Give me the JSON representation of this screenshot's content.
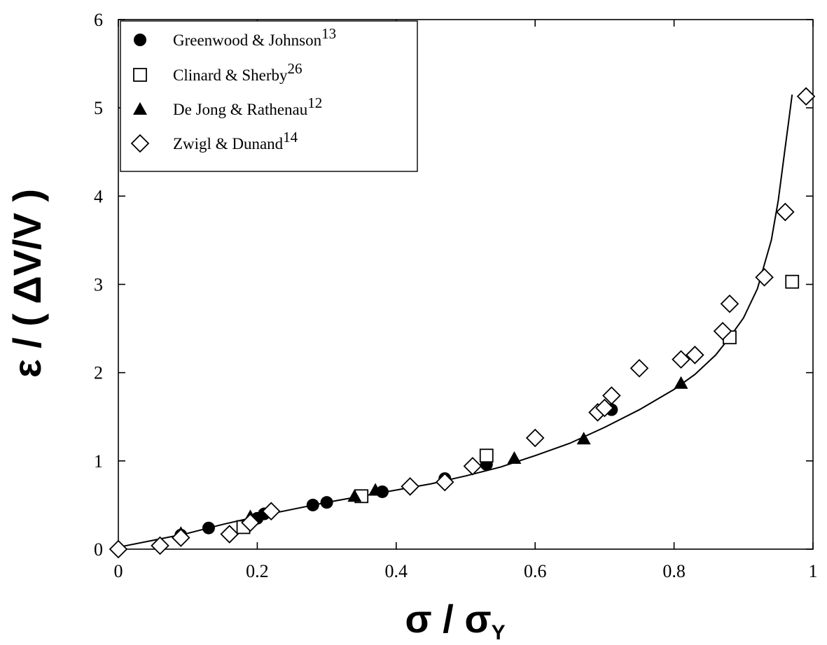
{
  "chart_data": {
    "type": "scatter",
    "xlabel": "σ / σ",
    "xlabel_sub": "Y",
    "ylabel": "ε / ( ΔV/V )",
    "xlim": [
      0,
      1
    ],
    "ylim": [
      0,
      6
    ],
    "x_ticks": [
      "0",
      "0.2",
      "0.4",
      "0.6",
      "0.8",
      "1"
    ],
    "y_ticks": [
      "0",
      "1",
      "2",
      "3",
      "4",
      "5",
      "6"
    ],
    "legend_position": "top-left",
    "grid": false,
    "series": [
      {
        "name": "Greenwood & Johnson",
        "ref": "13",
        "marker": "filled-circle",
        "points": [
          [
            0.09,
            0.16
          ],
          [
            0.13,
            0.24
          ],
          [
            0.2,
            0.35
          ],
          [
            0.21,
            0.4
          ],
          [
            0.28,
            0.5
          ],
          [
            0.3,
            0.53
          ],
          [
            0.38,
            0.65
          ],
          [
            0.47,
            0.8
          ],
          [
            0.53,
            0.96
          ],
          [
            0.71,
            1.58
          ]
        ]
      },
      {
        "name": "Clinard & Sherby",
        "ref": "26",
        "marker": "open-square",
        "points": [
          [
            0.18,
            0.25
          ],
          [
            0.35,
            0.6
          ],
          [
            0.53,
            1.06
          ],
          [
            0.88,
            2.4
          ],
          [
            0.97,
            3.03
          ]
        ]
      },
      {
        "name": "De Jong & Rathenau",
        "ref": "12",
        "marker": "filled-triangle",
        "points": [
          [
            0.09,
            0.18
          ],
          [
            0.19,
            0.37
          ],
          [
            0.34,
            0.6
          ],
          [
            0.37,
            0.67
          ],
          [
            0.57,
            1.03
          ],
          [
            0.67,
            1.25
          ],
          [
            0.81,
            1.88
          ]
        ]
      },
      {
        "name": "Zwigl & Dunand",
        "ref": "14",
        "marker": "open-diamond",
        "points": [
          [
            0,
            0
          ],
          [
            0.06,
            0.04
          ],
          [
            0.09,
            0.13
          ],
          [
            0.16,
            0.17
          ],
          [
            0.19,
            0.3
          ],
          [
            0.22,
            0.43
          ],
          [
            0.42,
            0.71
          ],
          [
            0.47,
            0.76
          ],
          [
            0.51,
            0.94
          ],
          [
            0.6,
            1.26
          ],
          [
            0.69,
            1.55
          ],
          [
            0.7,
            1.6
          ],
          [
            0.71,
            1.74
          ],
          [
            0.75,
            2.05
          ],
          [
            0.81,
            2.15
          ],
          [
            0.83,
            2.2
          ],
          [
            0.87,
            2.47
          ],
          [
            0.88,
            2.78
          ],
          [
            0.93,
            3.08
          ],
          [
            0.96,
            3.82
          ],
          [
            0.99,
            5.13
          ]
        ]
      }
    ],
    "fit_curve": {
      "x": [
        0.005,
        0.05,
        0.1,
        0.15,
        0.2,
        0.25,
        0.3,
        0.35,
        0.4,
        0.45,
        0.5,
        0.55,
        0.6,
        0.65,
        0.7,
        0.75,
        0.8,
        0.83,
        0.86,
        0.88,
        0.9,
        0.92,
        0.94,
        0.95,
        0.96,
        0.965,
        0.97
      ],
      "y": [
        0.03,
        0.1,
        0.18,
        0.28,
        0.37,
        0.45,
        0.53,
        0.6,
        0.67,
        0.74,
        0.83,
        0.93,
        1.06,
        1.2,
        1.38,
        1.58,
        1.81,
        1.98,
        2.2,
        2.4,
        2.62,
        2.95,
        3.5,
        3.95,
        4.55,
        4.85,
        5.15
      ]
    }
  }
}
